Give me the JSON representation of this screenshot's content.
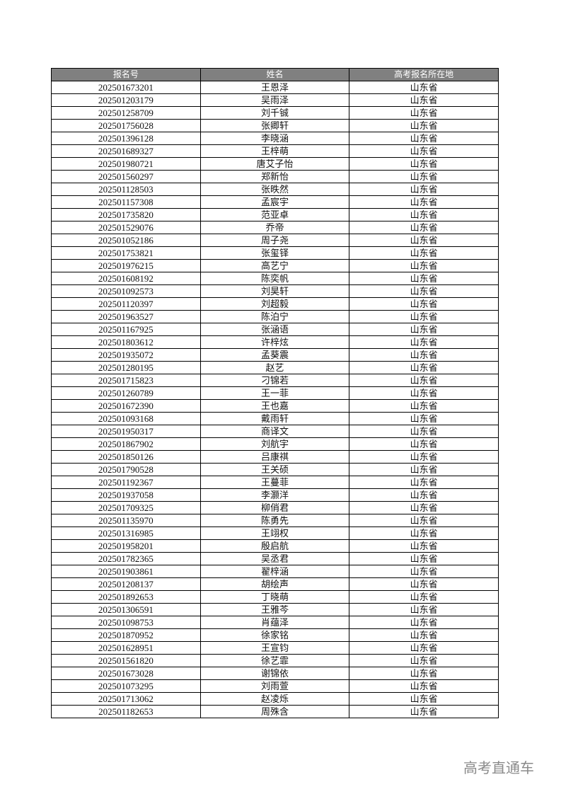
{
  "table": {
    "headers": [
      "报名号",
      "姓名",
      "高考报名所在地"
    ],
    "rows": [
      [
        "202501673201",
        "王恩泽",
        "山东省"
      ],
      [
        "202501203179",
        "吴雨泽",
        "山东省"
      ],
      [
        "202501258709",
        "刘千铖",
        "山东省"
      ],
      [
        "202501756028",
        "张卿轩",
        "山东省"
      ],
      [
        "202501396128",
        "李晓涵",
        "山东省"
      ],
      [
        "202501689327",
        "王梓萌",
        "山东省"
      ],
      [
        "202501980721",
        "唐艾子怡",
        "山东省"
      ],
      [
        "202501560297",
        "郑新怡",
        "山东省"
      ],
      [
        "202501128503",
        "张昳然",
        "山东省"
      ],
      [
        "202501157308",
        "孟宸宇",
        "山东省"
      ],
      [
        "202501735820",
        "范亚卓",
        "山东省"
      ],
      [
        "202501529076",
        "乔帝",
        "山东省"
      ],
      [
        "202501052186",
        "周子尧",
        "山东省"
      ],
      [
        "202501753821",
        "张玺铎",
        "山东省"
      ],
      [
        "202501976215",
        "高艺宁",
        "山东省"
      ],
      [
        "202501608192",
        "陈奕帆",
        "山东省"
      ],
      [
        "202501092573",
        "刘昊轩",
        "山东省"
      ],
      [
        "202501120397",
        "刘超毅",
        "山东省"
      ],
      [
        "202501963527",
        "陈泊宁",
        "山东省"
      ],
      [
        "202501167925",
        "张涵语",
        "山东省"
      ],
      [
        "202501803612",
        "许梓炫",
        "山东省"
      ],
      [
        "202501935072",
        "孟葵震",
        "山东省"
      ],
      [
        "202501280195",
        "赵艺",
        "山东省"
      ],
      [
        "202501715823",
        "刁锦若",
        "山东省"
      ],
      [
        "202501260789",
        "王一菲",
        "山东省"
      ],
      [
        "202501672390",
        "王也嘉",
        "山东省"
      ],
      [
        "202501093168",
        "戴雨轩",
        "山东省"
      ],
      [
        "202501950317",
        "商译文",
        "山东省"
      ],
      [
        "202501867902",
        "刘航宇",
        "山东省"
      ],
      [
        "202501850126",
        "吕康祺",
        "山东省"
      ],
      [
        "202501790528",
        "王关硕",
        "山东省"
      ],
      [
        "202501192367",
        "王蔓菲",
        "山东省"
      ],
      [
        "202501937058",
        "李灏洋",
        "山东省"
      ],
      [
        "202501709325",
        "柳俏君",
        "山东省"
      ],
      [
        "202501135970",
        "陈勇先",
        "山东省"
      ],
      [
        "202501316985",
        "王翊权",
        "山东省"
      ],
      [
        "202501958201",
        "殷启航",
        "山东省"
      ],
      [
        "202501782365",
        "吴丞君",
        "山东省"
      ],
      [
        "202501903861",
        "翟梓涵",
        "山东省"
      ],
      [
        "202501208137",
        "胡绘声",
        "山东省"
      ],
      [
        "202501892653",
        "丁晓萌",
        "山东省"
      ],
      [
        "202501306591",
        "王雅芩",
        "山东省"
      ],
      [
        "202501098753",
        "肖蕴泽",
        "山东省"
      ],
      [
        "202501870952",
        "徐家铭",
        "山东省"
      ],
      [
        "202501628951",
        "王宣钧",
        "山东省"
      ],
      [
        "202501561820",
        "徐艺霏",
        "山东省"
      ],
      [
        "202501673028",
        "谢锦依",
        "山东省"
      ],
      [
        "202501073295",
        "刘雨萱",
        "山东省"
      ],
      [
        "202501713062",
        "赵凌烁",
        "山东省"
      ],
      [
        "202501182653",
        "周殊含",
        "山东省"
      ]
    ]
  },
  "watermark": "高考直通车",
  "colors": {
    "header_bg": "#808080",
    "header_text": "#ffffff",
    "watermark": "#8a8a8a"
  }
}
